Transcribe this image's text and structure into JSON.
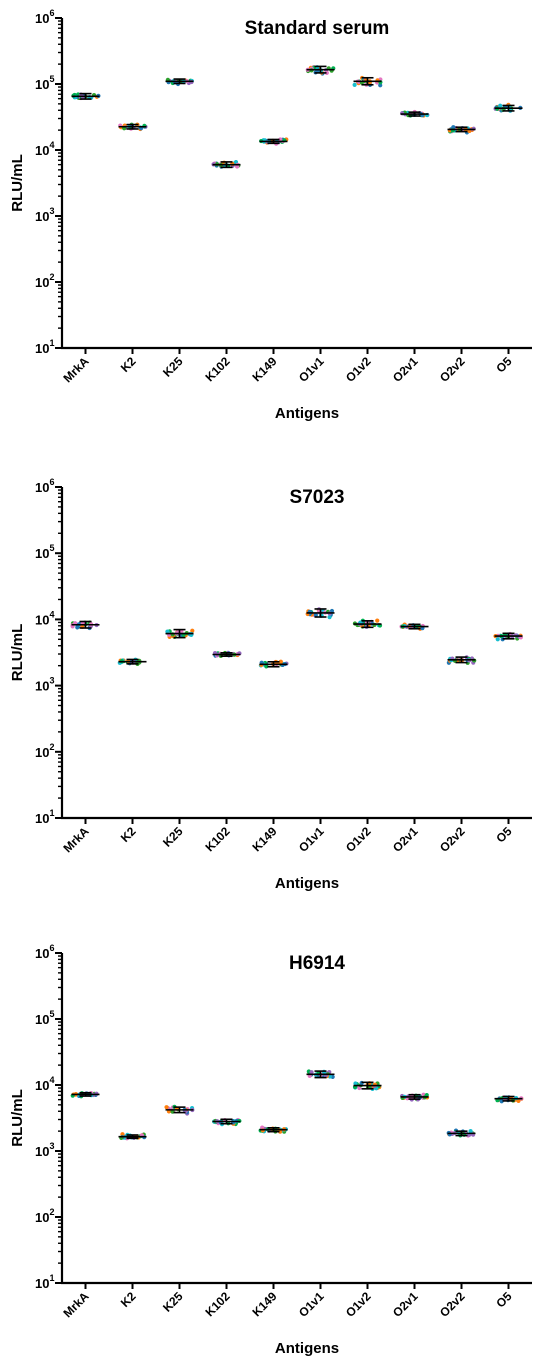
{
  "colors": {
    "axis": "#000000",
    "point_palette": [
      "#2ca02c",
      "#1f77b4",
      "#17becf",
      "#e377c2",
      "#ff7f0e",
      "#9467bd",
      "#00b050"
    ]
  },
  "chart_data": [
    {
      "type": "scatter",
      "title": "Standard serum",
      "ylabel": "RLU/mL",
      "xlabel": "Antigens",
      "yscale": "log",
      "ylim": [
        10,
        1000000
      ],
      "yticks": [
        10,
        100,
        1000,
        10000,
        100000,
        1000000
      ],
      "ytick_labels": [
        {
          "base": "10",
          "exp": "1"
        },
        {
          "base": "10",
          "exp": "2"
        },
        {
          "base": "10",
          "exp": "3"
        },
        {
          "base": "10",
          "exp": "4"
        },
        {
          "base": "10",
          "exp": "5"
        },
        {
          "base": "10",
          "exp": "6"
        }
      ],
      "grid": false,
      "categories": [
        "MrkA",
        "K2",
        "K25",
        "K102",
        "K149",
        "O1v1",
        "O1v2",
        "O2v1",
        "O2v2",
        "O5"
      ],
      "mean": [
        65000,
        22500,
        110000,
        6000,
        13500,
        165000,
        110000,
        35000,
        20500,
        43000
      ],
      "sd_fold": [
        1.1,
        1.08,
        1.08,
        1.1,
        1.07,
        1.12,
        1.13,
        1.07,
        1.08,
        1.1
      ]
    },
    {
      "type": "scatter",
      "title": "S7023",
      "ylabel": "RLU/mL",
      "xlabel": "Antigens",
      "yscale": "log",
      "ylim": [
        10,
        1000000
      ],
      "yticks": [
        10,
        100,
        1000,
        10000,
        100000,
        1000000
      ],
      "ytick_labels": [
        {
          "base": "10",
          "exp": "1"
        },
        {
          "base": "10",
          "exp": "2"
        },
        {
          "base": "10",
          "exp": "3"
        },
        {
          "base": "10",
          "exp": "4"
        },
        {
          "base": "10",
          "exp": "5"
        },
        {
          "base": "10",
          "exp": "6"
        }
      ],
      "grid": false,
      "categories": [
        "MrkA",
        "K2",
        "K25",
        "K102",
        "K149",
        "O1v1",
        "O1v2",
        "O2v1",
        "O2v2",
        "O5"
      ],
      "mean": [
        8300,
        2300,
        6100,
        2950,
        2100,
        12500,
        8500,
        7800,
        2450,
        5600
      ],
      "sd_fold": [
        1.12,
        1.08,
        1.15,
        1.06,
        1.09,
        1.15,
        1.12,
        1.08,
        1.1,
        1.1
      ]
    },
    {
      "type": "scatter",
      "title": "H6914",
      "ylabel": "RLU/mL",
      "xlabel": "Antigens",
      "yscale": "log",
      "ylim": [
        10,
        1000000
      ],
      "yticks": [
        10,
        100,
        1000,
        10000,
        100000,
        1000000
      ],
      "ytick_labels": [
        {
          "base": "10",
          "exp": "1"
        },
        {
          "base": "10",
          "exp": "2"
        },
        {
          "base": "10",
          "exp": "3"
        },
        {
          "base": "10",
          "exp": "4"
        },
        {
          "base": "10",
          "exp": "5"
        },
        {
          "base": "10",
          "exp": "6"
        }
      ],
      "grid": false,
      "categories": [
        "MrkA",
        "K2",
        "K25",
        "K102",
        "K149",
        "O1v1",
        "O1v2",
        "O2v1",
        "O2v2",
        "O5"
      ],
      "mean": [
        7200,
        1650,
        4200,
        2800,
        2100,
        14500,
        9800,
        6600,
        1850,
        6200
      ],
      "sd_fold": [
        1.06,
        1.06,
        1.1,
        1.08,
        1.07,
        1.12,
        1.12,
        1.08,
        1.08,
        1.08
      ]
    }
  ]
}
